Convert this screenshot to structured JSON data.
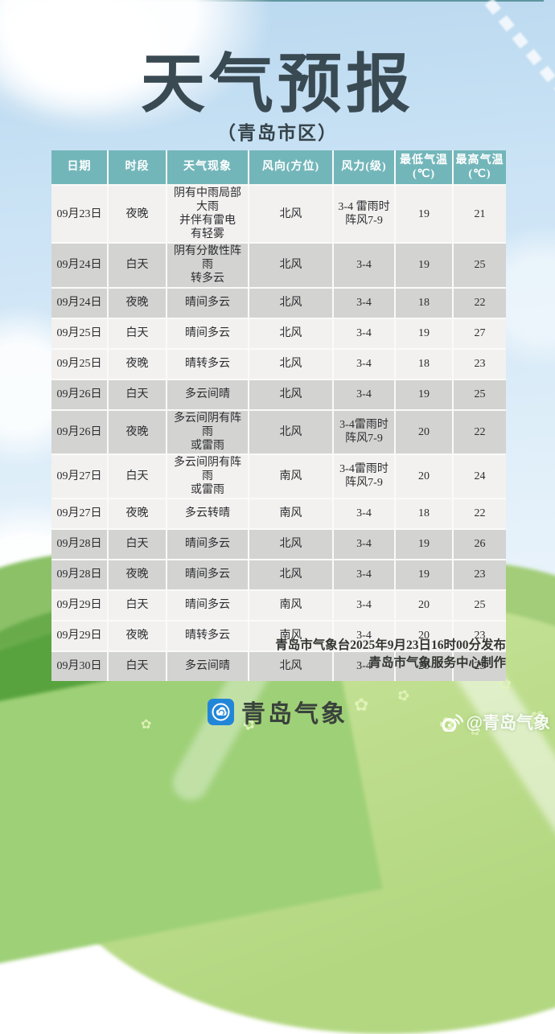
{
  "page": {
    "title": "天气预报",
    "subtitle": "（青岛市区）"
  },
  "table": {
    "columns": [
      "日期",
      "时段",
      "天气现象",
      "风向(方位)",
      "风力(级)",
      "最低气温\n(℃)",
      "最高气温\n(℃)"
    ],
    "rows": [
      {
        "date": "09月23日",
        "period": "夜晚",
        "weather": "阴有中雨局部大雨\n并伴有雷电\n有轻雾",
        "wind_dir": "北风",
        "wind_force": "3-4 雷雨时\n阵风7-9",
        "temp_low": "19",
        "temp_high": "21",
        "shade": "light"
      },
      {
        "date": "09月24日",
        "period": "白天",
        "weather": "阴有分散性阵雨\n转多云",
        "wind_dir": "北风",
        "wind_force": "3-4",
        "temp_low": "19",
        "temp_high": "25",
        "shade": "gray"
      },
      {
        "date": "09月24日",
        "period": "夜晚",
        "weather": "晴间多云",
        "wind_dir": "北风",
        "wind_force": "3-4",
        "temp_low": "18",
        "temp_high": "22",
        "shade": "gray"
      },
      {
        "date": "09月25日",
        "period": "白天",
        "weather": "晴间多云",
        "wind_dir": "北风",
        "wind_force": "3-4",
        "temp_low": "19",
        "temp_high": "27",
        "shade": "light"
      },
      {
        "date": "09月25日",
        "period": "夜晚",
        "weather": "晴转多云",
        "wind_dir": "北风",
        "wind_force": "3-4",
        "temp_low": "18",
        "temp_high": "23",
        "shade": "light"
      },
      {
        "date": "09月26日",
        "period": "白天",
        "weather": "多云间晴",
        "wind_dir": "北风",
        "wind_force": "3-4",
        "temp_low": "19",
        "temp_high": "25",
        "shade": "gray"
      },
      {
        "date": "09月26日",
        "period": "夜晚",
        "weather": "多云间阴有阵雨\n或雷雨",
        "wind_dir": "北风",
        "wind_force": "3-4雷雨时\n阵风7-9",
        "temp_low": "20",
        "temp_high": "22",
        "shade": "gray"
      },
      {
        "date": "09月27日",
        "period": "白天",
        "weather": "多云间阴有阵雨\n或雷雨",
        "wind_dir": "南风",
        "wind_force": "3-4雷雨时\n阵风7-9",
        "temp_low": "20",
        "temp_high": "24",
        "shade": "light"
      },
      {
        "date": "09月27日",
        "period": "夜晚",
        "weather": "多云转晴",
        "wind_dir": "南风",
        "wind_force": "3-4",
        "temp_low": "18",
        "temp_high": "22",
        "shade": "light"
      },
      {
        "date": "09月28日",
        "period": "白天",
        "weather": "晴间多云",
        "wind_dir": "北风",
        "wind_force": "3-4",
        "temp_low": "19",
        "temp_high": "26",
        "shade": "gray"
      },
      {
        "date": "09月28日",
        "period": "夜晚",
        "weather": "晴间多云",
        "wind_dir": "北风",
        "wind_force": "3-4",
        "temp_low": "19",
        "temp_high": "23",
        "shade": "gray"
      },
      {
        "date": "09月29日",
        "period": "白天",
        "weather": "晴间多云",
        "wind_dir": "南风",
        "wind_force": "3-4",
        "temp_low": "20",
        "temp_high": "25",
        "shade": "light"
      },
      {
        "date": "09月29日",
        "period": "夜晚",
        "weather": "晴转多云",
        "wind_dir": "南风",
        "wind_force": "3-4",
        "temp_low": "20",
        "temp_high": "23",
        "shade": "light"
      },
      {
        "date": "09月30日",
        "period": "白天",
        "weather": "多云间晴",
        "wind_dir": "北风",
        "wind_force": "3-4",
        "temp_low": "20",
        "temp_high": "25",
        "shade": "gray"
      }
    ]
  },
  "footer": {
    "issued_line": "青岛市气象台2025年9月23日16时00分发布",
    "produced_line": "青岛市气象服务中心制作"
  },
  "branding": {
    "logo_text": "青岛气象",
    "watermark": "@青岛气象"
  },
  "icons": {
    "flower": "✿"
  },
  "colors": {
    "header_teal": "#73b6ba",
    "row_light": "#f2f1ef",
    "row_gray": "#d3d3d1",
    "title_color": "#3a4a53",
    "logo_blue": "#2286d8"
  }
}
